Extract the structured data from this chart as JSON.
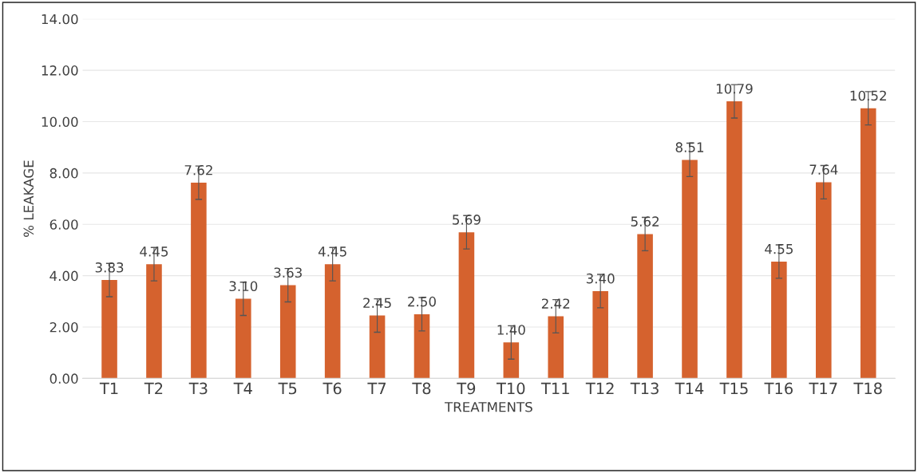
{
  "chart_data": {
    "type": "bar",
    "xlabel": "TREATMENTS",
    "ylabel": "% LEAKAGE",
    "categories": [
      "T1",
      "T2",
      "T3",
      "T4",
      "T5",
      "T6",
      "T7",
      "T8",
      "T9",
      "T10",
      "T11",
      "T12",
      "T13",
      "T14",
      "T15",
      "T16",
      "T17",
      "T18"
    ],
    "values": [
      3.83,
      4.45,
      7.62,
      3.1,
      3.63,
      4.45,
      2.45,
      2.5,
      5.69,
      1.4,
      2.42,
      3.4,
      5.62,
      8.51,
      10.79,
      4.55,
      7.64,
      10.52
    ],
    "value_labels": [
      "3.83",
      "4.45",
      "7.62",
      "3.10",
      "3.63",
      "4.45",
      "2.45",
      "2.50",
      "5.69",
      "1.40",
      "2.42",
      "3.40",
      "5.62",
      "8.51",
      "10.79",
      "4.55",
      "7.64",
      "10.52"
    ],
    "errors": [
      0.65,
      0.65,
      0.65,
      0.65,
      0.65,
      0.65,
      0.65,
      0.65,
      0.65,
      0.65,
      0.65,
      0.65,
      0.65,
      0.65,
      0.65,
      0.65,
      0.65,
      0.65
    ],
    "color": "#d5622e",
    "ylim": [
      0,
      14
    ],
    "yticks": [
      {
        "value": 0,
        "label": "0.00"
      },
      {
        "value": 2,
        "label": "2.00"
      },
      {
        "value": 4,
        "label": "4.00"
      },
      {
        "value": 6,
        "label": "6.00"
      },
      {
        "value": 8,
        "label": "8.00"
      },
      {
        "value": 10,
        "label": "10.00"
      },
      {
        "value": 12,
        "label": "12.00"
      },
      {
        "value": 14,
        "label": "14.00"
      }
    ],
    "grid": "y"
  }
}
